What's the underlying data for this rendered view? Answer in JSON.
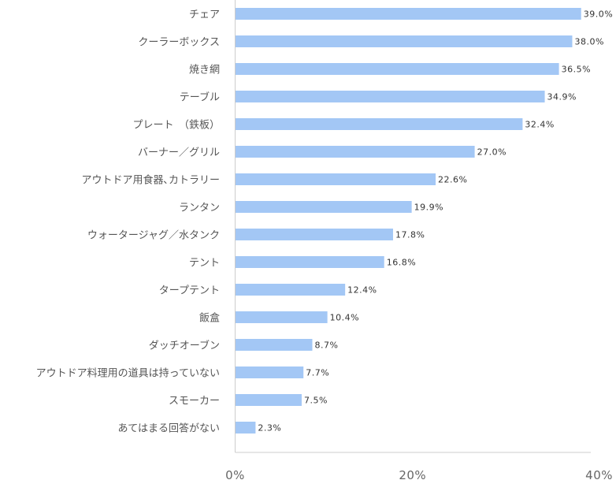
{
  "chart_data": {
    "type": "bar",
    "orientation": "horizontal",
    "categories": [
      "チェア",
      "クーラーボックス",
      "焼き網",
      "テーブル",
      "プレート　（鉄板）",
      "バーナー／グリル",
      "アウトドア用食器､カトラリー",
      "ランタン",
      "ウォータージャグ／水タンク",
      "テント",
      "タープテント",
      "飯盒",
      "ダッチオーブン",
      "アウトドア料理用の道具は持っていない",
      "スモーカー",
      "あてはまる回答がない"
    ],
    "values": [
      39.0,
      38.0,
      36.5,
      34.9,
      32.4,
      27.0,
      22.6,
      19.9,
      17.8,
      16.8,
      12.4,
      10.4,
      8.7,
      7.7,
      7.5,
      2.3
    ],
    "value_labels": [
      "39.0%",
      "38.0%",
      "36.5%",
      "34.9%",
      "32.4%",
      "27.0%",
      "22.6%",
      "19.9%",
      "17.8%",
      "16.8%",
      "12.4%",
      "10.4%",
      "8.7%",
      "7.7%",
      "7.5%",
      "2.3%"
    ],
    "xlim": [
      0,
      40
    ],
    "x_ticks": [
      0,
      20,
      40
    ],
    "x_tick_labels": [
      "0%",
      "20%",
      "40%"
    ],
    "bar_color": "#a3c7f5",
    "grid": false,
    "legend": "none"
  }
}
